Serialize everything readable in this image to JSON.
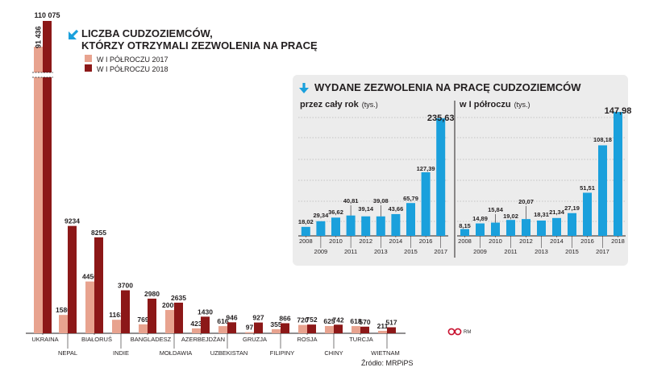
{
  "colors": {
    "series2017": "#e8a38f",
    "series2018": "#8c1818",
    "accent": "#1aa0dc",
    "inset_bar": "#1aa0dc",
    "inset_bg": "#ececec",
    "text": "#231f20"
  },
  "chart_data": [
    {
      "type": "bar",
      "title": "LICZBA CUDZOZIEMCÓW, KTÓRZY OTRZYMALI ZEZWOLENIA NA PRACĘ",
      "title_lines": [
        "LICZBA CUDZOZIEMCÓW,",
        "KTÓRZY OTRZYMALI ZEZWOLENIA NA PRACĘ"
      ],
      "categories": [
        "UKRAINA",
        "NEPAL",
        "BIAŁORUŚ",
        "INDIE",
        "BANGLADESZ",
        "MOŁDAWIA",
        "AZERBEJDŻAN",
        "UZBEKISTAN",
        "GRUZJA",
        "FILIPINY",
        "ROSJA",
        "CHINY",
        "TURCJA",
        "WIETNAM"
      ],
      "series": [
        {
          "name": "W I PÓŁROCZU 2017",
          "values": [
            91436,
            1580,
            4456,
            1163,
            769,
            2005,
            423,
            616,
            97,
            355,
            720,
            625,
            618,
            211
          ],
          "labels": [
            "91 436",
            "1580",
            "4456",
            "1163",
            "769",
            "2005",
            "423",
            "616",
            "97",
            "355",
            "720",
            "625",
            "618",
            "211"
          ]
        },
        {
          "name": "W I PÓŁROCZU 2018",
          "values": [
            110075,
            9234,
            8255,
            3700,
            2980,
            2635,
            1430,
            946,
            927,
            866,
            752,
            742,
            570,
            517
          ],
          "labels": [
            "110 075",
            "9234",
            "8255",
            "3700",
            "2980",
            "2635",
            "1430",
            "946",
            "927",
            "866",
            "752",
            "742",
            "570",
            "517"
          ]
        }
      ],
      "xlabel": "",
      "ylabel": "",
      "axis_break": true,
      "grid": false,
      "legend": "top-right"
    },
    {
      "type": "bar",
      "title": "WYDANE ZEZWOLENIA NA PRACĘ CUDZOZIEMCÓW",
      "subtitle": "przez cały rok",
      "unit": "(tys.)",
      "categories": [
        "2008",
        "2009",
        "2010",
        "2011",
        "2012",
        "2013",
        "2014",
        "2015",
        "2016",
        "2017"
      ],
      "values": [
        18.02,
        29.34,
        36.62,
        40.81,
        39.14,
        39.08,
        43.66,
        65.79,
        127.39,
        235.63
      ],
      "labels": [
        "18,02",
        "29,34",
        "36,62",
        "40,81",
        "39,14",
        "39,08",
        "43,66",
        "65,79",
        "127,39",
        "235,63"
      ],
      "ylim": [
        0,
        250
      ],
      "grid": true
    },
    {
      "type": "bar",
      "title": "WYDANE ZEZWOLENIA NA PRACĘ CUDZOZIEMCÓW",
      "subtitle": "w I półroczu",
      "unit": "(tys.)",
      "categories": [
        "2008",
        "2009",
        "2010",
        "2011",
        "2012",
        "2013",
        "2014",
        "2015",
        "2016",
        "2017",
        "2018"
      ],
      "values": [
        8.15,
        14.89,
        15.84,
        19.02,
        20.07,
        18.31,
        21.34,
        27.19,
        51.51,
        108.18,
        147.98
      ],
      "labels": [
        "8,15",
        "14,89",
        "15,84",
        "19,02",
        "20,07",
        "18,31",
        "21,34",
        "27,19",
        "51,51",
        "108,18",
        "147,98"
      ],
      "ylim": [
        0,
        155
      ],
      "grid": true
    }
  ],
  "source": "Źródło: MRPiPS",
  "credit": "RM"
}
